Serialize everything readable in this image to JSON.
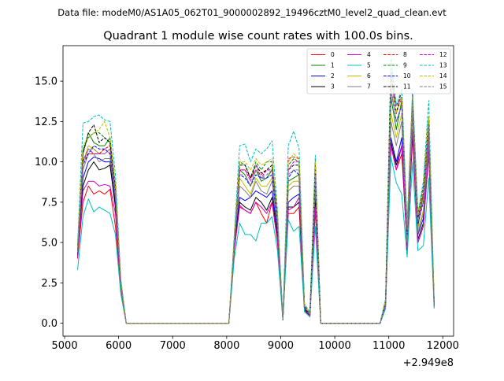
{
  "suptitle": "Data file: modeM0/AS1A05_062T01_9000002892_19496cztM0_level2_quad_clean.evt",
  "title": "Quadrant 1 module wise count rates with 100.0s bins.",
  "offset_label": "+2.949e8",
  "chart_data": {
    "type": "line",
    "title": "Quadrant 1 module wise count rates with 100.0s bins.",
    "xlabel": "",
    "ylabel": "",
    "x_offset": 294900000,
    "xlim": [
      4970,
      12200
    ],
    "ylim": [
      -0.8,
      17.2
    ],
    "xticks": [
      5000,
      6000,
      7000,
      8000,
      9000,
      10000,
      11000,
      12000
    ],
    "yticks": [
      0.0,
      2.5,
      5.0,
      7.5,
      10.0,
      12.5,
      15.0
    ],
    "grid": false,
    "legend_position": "top-right",
    "legend_columns": 4,
    "x": [
      5240,
      5340,
      5440,
      5540,
      5640,
      5740,
      5840,
      5940,
      6040,
      6140,
      8040,
      8140,
      8240,
      8340,
      8440,
      8540,
      8640,
      8740,
      8840,
      8940,
      9040,
      9140,
      9240,
      9340,
      9440,
      9540,
      9640,
      9740,
      10840,
      10940,
      11040,
      11140,
      11240,
      11340,
      11440,
      11540,
      11640,
      11740,
      11840
    ],
    "series": [
      {
        "name": "0",
        "color": "#ff0000",
        "dash": false,
        "values": [
          4.0,
          7.5,
          8.5,
          8.0,
          8.2,
          8.0,
          8.3,
          6.0,
          2.2,
          0.0,
          0.0,
          4.5,
          7.2,
          7.0,
          6.8,
          7.5,
          6.8,
          6.2,
          7.5,
          5.0,
          0.2,
          6.8,
          6.8,
          7.2,
          0.8,
          0.4,
          7.0,
          0.0,
          0.0,
          1.0,
          11.0,
          9.5,
          10.5,
          4.8,
          11.5,
          5.0,
          6.0,
          10.5,
          1.0
        ]
      },
      {
        "name": "1",
        "color": "#008000",
        "dash": false,
        "values": [
          4.8,
          10.5,
          11.8,
          11.2,
          11.0,
          11.0,
          11.5,
          8.5,
          2.5,
          0.0,
          0.0,
          5.2,
          9.5,
          9.2,
          8.5,
          9.5,
          8.8,
          9.0,
          9.5,
          6.5,
          0.2,
          8.8,
          9.0,
          9.2,
          1.0,
          0.5,
          9.0,
          0.0,
          0.0,
          1.3,
          14.0,
          12.0,
          13.8,
          5.5,
          13.5,
          6.0,
          8.0,
          12.0,
          1.3
        ]
      },
      {
        "name": "2",
        "color": "#0000ff",
        "dash": false,
        "values": [
          4.3,
          9.0,
          10.0,
          10.3,
          10.2,
          10.0,
          10.0,
          7.5,
          2.3,
          0.0,
          0.0,
          4.8,
          7.8,
          7.6,
          7.8,
          8.2,
          8.0,
          7.8,
          8.2,
          5.8,
          0.2,
          7.5,
          7.8,
          8.0,
          0.9,
          0.5,
          8.0,
          0.0,
          0.0,
          1.1,
          11.5,
          10.0,
          11.5,
          4.5,
          12.0,
          5.5,
          6.5,
          11.0,
          1.1
        ]
      },
      {
        "name": "3",
        "color": "#000000",
        "dash": false,
        "values": [
          4.2,
          8.5,
          9.5,
          10.0,
          9.5,
          9.6,
          9.8,
          7.2,
          2.2,
          0.0,
          0.0,
          4.6,
          7.5,
          7.2,
          7.0,
          7.8,
          7.5,
          7.0,
          7.8,
          5.5,
          0.2,
          7.2,
          7.2,
          7.5,
          0.9,
          0.4,
          7.5,
          0.0,
          0.0,
          1.1,
          11.2,
          9.8,
          11.0,
          4.6,
          11.8,
          5.2,
          6.2,
          10.8,
          1.1
        ]
      },
      {
        "name": "4",
        "color": "#cc00cc",
        "dash": false,
        "values": [
          4.1,
          8.2,
          8.8,
          8.8,
          8.5,
          8.6,
          8.5,
          6.8,
          2.2,
          0.0,
          0.0,
          4.5,
          7.3,
          7.0,
          6.8,
          7.5,
          7.2,
          6.8,
          7.5,
          5.2,
          0.2,
          7.0,
          7.2,
          7.8,
          0.8,
          0.4,
          7.2,
          0.0,
          0.0,
          1.0,
          11.0,
          9.5,
          11.0,
          4.7,
          12.0,
          5.0,
          6.0,
          10.5,
          1.0
        ]
      },
      {
        "name": "5",
        "color": "#00bfbf",
        "dash": false,
        "values": [
          3.3,
          6.6,
          7.7,
          6.9,
          7.2,
          7.0,
          6.8,
          5.5,
          1.8,
          0.0,
          0.0,
          4.0,
          6.2,
          5.5,
          5.5,
          5.1,
          6.2,
          6.2,
          6.6,
          4.5,
          0.2,
          6.4,
          5.7,
          6.0,
          0.7,
          0.4,
          6.0,
          0.0,
          0.0,
          0.9,
          10.3,
          8.7,
          8.0,
          4.1,
          10.0,
          4.5,
          4.8,
          9.0,
          0.9
        ]
      },
      {
        "name": "6",
        "color": "#bfbf00",
        "dash": false,
        "values": [
          4.5,
          10.0,
          11.0,
          10.8,
          10.5,
          10.8,
          10.5,
          8.0,
          2.4,
          0.0,
          0.0,
          5.0,
          9.0,
          8.5,
          8.0,
          9.0,
          8.5,
          8.5,
          9.0,
          6.2,
          0.2,
          8.5,
          8.8,
          8.8,
          1.0,
          0.5,
          8.8,
          0.0,
          0.0,
          1.2,
          13.0,
          11.5,
          13.0,
          5.0,
          13.0,
          5.8,
          7.0,
          11.5,
          1.2
        ]
      },
      {
        "name": "7",
        "color": "#808080",
        "dash": false,
        "values": [
          4.4,
          9.5,
          10.5,
          10.5,
          10.0,
          10.2,
          10.2,
          7.8,
          2.3,
          0.0,
          0.0,
          4.9,
          8.5,
          8.2,
          7.8,
          8.8,
          8.2,
          8.0,
          8.8,
          6.0,
          0.2,
          8.2,
          8.5,
          8.5,
          1.0,
          0.5,
          8.5,
          0.0,
          0.0,
          1.2,
          12.5,
          11.0,
          12.5,
          5.0,
          12.8,
          5.6,
          6.8,
          11.2,
          1.2
        ]
      },
      {
        "name": "8",
        "color": "#ff0000",
        "dash": true,
        "values": [
          4.6,
          10.2,
          10.5,
          10.5,
          10.5,
          10.8,
          11.0,
          8.2,
          2.5,
          0.0,
          0.0,
          5.0,
          9.5,
          9.5,
          9.0,
          9.5,
          9.2,
          9.5,
          9.5,
          6.5,
          0.2,
          10.2,
          10.3,
          10.2,
          1.0,
          0.5,
          9.5,
          0.0,
          0.0,
          1.3,
          15.0,
          13.0,
          14.0,
          5.8,
          14.2,
          6.5,
          8.0,
          12.5,
          1.3
        ]
      },
      {
        "name": "9",
        "color": "#008000",
        "dash": true,
        "values": [
          4.8,
          10.8,
          11.5,
          11.8,
          11.8,
          11.5,
          11.2,
          8.5,
          2.6,
          0.0,
          0.0,
          5.2,
          10.0,
          9.8,
          9.0,
          10.0,
          9.5,
          10.0,
          10.0,
          6.8,
          0.2,
          9.8,
          10.2,
          10.0,
          1.1,
          0.6,
          10.0,
          0.0,
          0.0,
          1.4,
          16.4,
          13.5,
          14.0,
          5.8,
          14.0,
          6.8,
          8.5,
          12.8,
          1.4
        ]
      },
      {
        "name": "10",
        "color": "#0000ff",
        "dash": true,
        "values": [
          4.5,
          9.8,
          10.5,
          11.0,
          10.8,
          10.8,
          10.5,
          8.0,
          2.4,
          0.0,
          0.0,
          4.9,
          9.2,
          9.0,
          8.5,
          9.2,
          9.0,
          9.0,
          9.2,
          6.3,
          0.2,
          9.0,
          9.5,
          9.2,
          1.0,
          0.5,
          9.2,
          0.0,
          0.0,
          1.2,
          14.5,
          12.5,
          13.5,
          5.5,
          13.8,
          6.2,
          7.5,
          12.0,
          1.2
        ]
      },
      {
        "name": "11",
        "color": "#000000",
        "dash": true,
        "values": [
          4.7,
          10.5,
          11.8,
          12.3,
          11.2,
          11.5,
          11.2,
          8.3,
          2.5,
          0.0,
          0.0,
          5.0,
          9.8,
          9.8,
          9.0,
          9.8,
          9.3,
          9.5,
          9.8,
          6.6,
          0.2,
          9.5,
          9.8,
          9.8,
          1.1,
          0.5,
          9.8,
          0.0,
          0.0,
          1.3,
          15.5,
          13.0,
          14.5,
          5.8,
          14.0,
          6.6,
          8.2,
          12.5,
          1.3
        ]
      },
      {
        "name": "12",
        "color": "#cc00cc",
        "dash": true,
        "values": [
          4.6,
          10.0,
          10.8,
          10.5,
          10.5,
          10.5,
          10.8,
          8.0,
          2.4,
          0.0,
          0.0,
          5.0,
          9.5,
          9.5,
          8.8,
          9.8,
          9.0,
          9.5,
          9.5,
          6.5,
          0.2,
          9.5,
          10.0,
          10.0,
          1.0,
          0.5,
          9.5,
          0.0,
          0.0,
          1.3,
          15.0,
          13.5,
          14.0,
          5.8,
          14.2,
          6.5,
          7.5,
          12.0,
          1.3
        ]
      },
      {
        "name": "13",
        "color": "#00bfbf",
        "dash": true,
        "values": [
          4.9,
          12.4,
          12.5,
          12.8,
          12.9,
          12.6,
          12.5,
          9.2,
          2.8,
          0.0,
          0.0,
          5.5,
          11.0,
          11.1,
          10.0,
          10.8,
          10.5,
          10.8,
          11.3,
          7.0,
          0.2,
          11.0,
          11.9,
          10.8,
          1.2,
          0.7,
          10.4,
          0.0,
          0.0,
          1.5,
          15.8,
          13.5,
          14.5,
          6.2,
          14.5,
          6.8,
          8.8,
          13.8,
          1.5
        ]
      },
      {
        "name": "14",
        "color": "#bfbf00",
        "dash": true,
        "values": [
          4.7,
          11.0,
          11.5,
          11.8,
          12.0,
          12.5,
          11.5,
          8.5,
          2.6,
          0.0,
          0.0,
          5.1,
          10.0,
          10.0,
          9.5,
          10.2,
          9.8,
          10.0,
          10.2,
          6.8,
          0.2,
          10.0,
          10.5,
          10.2,
          1.1,
          0.6,
          10.0,
          0.0,
          0.0,
          1.4,
          15.0,
          13.0,
          14.0,
          5.9,
          14.0,
          6.7,
          8.2,
          12.8,
          1.4
        ]
      },
      {
        "name": "15",
        "color": "#808080",
        "dash": true,
        "values": [
          4.5,
          9.8,
          10.8,
          10.8,
          10.5,
          10.5,
          10.8,
          8.0,
          2.4,
          0.0,
          0.0,
          4.9,
          9.2,
          9.2,
          8.5,
          9.5,
          9.0,
          9.2,
          9.5,
          6.3,
          0.2,
          9.2,
          9.5,
          9.5,
          1.0,
          0.5,
          9.2,
          0.0,
          0.0,
          1.2,
          14.5,
          12.5,
          13.5,
          5.6,
          13.8,
          6.3,
          7.8,
          12.2,
          1.2
        ]
      }
    ]
  }
}
